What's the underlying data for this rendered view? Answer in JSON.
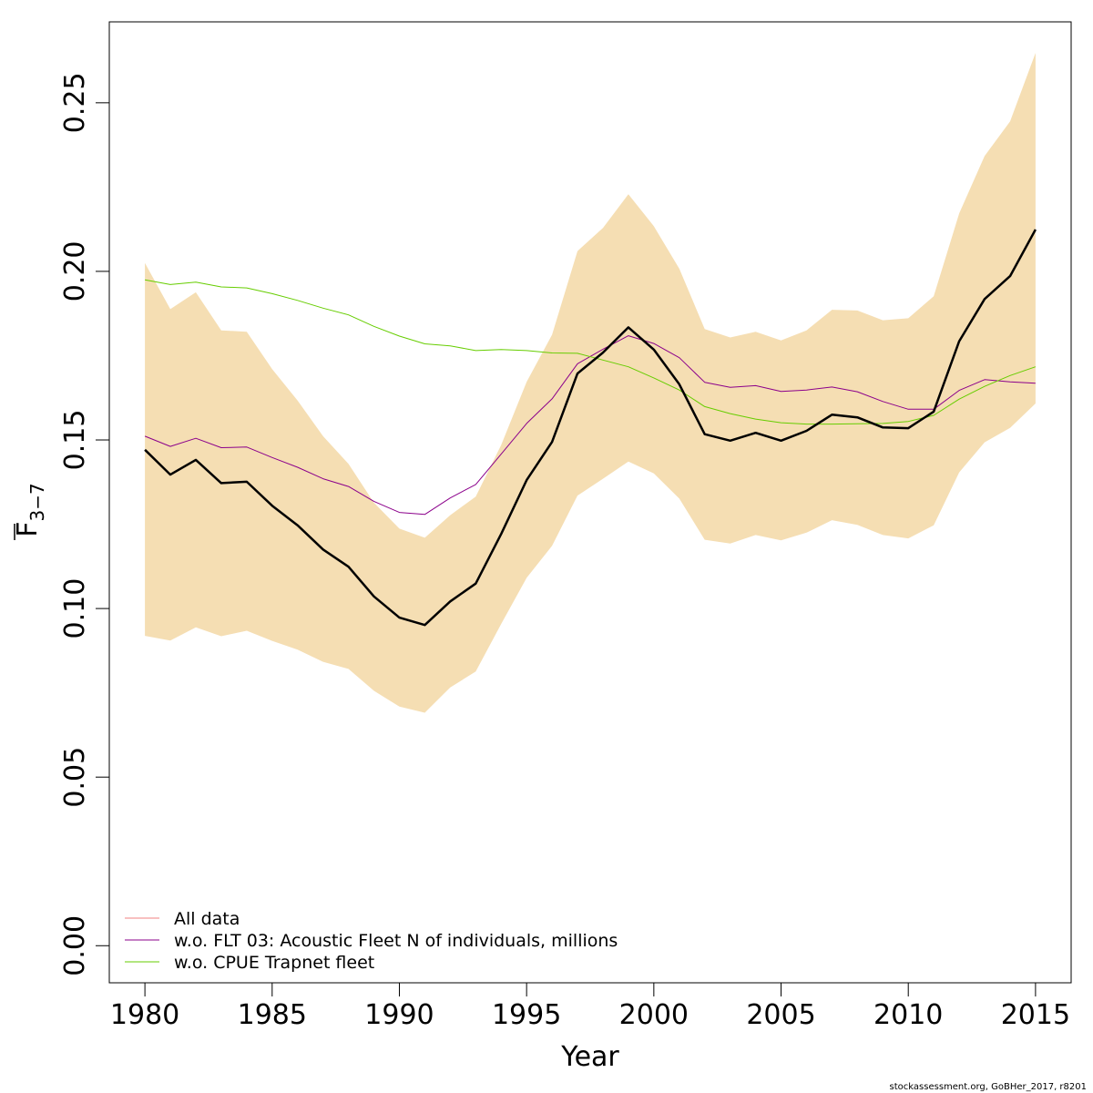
{
  "chart_data": {
    "type": "line",
    "title": "",
    "xlabel": "Year",
    "ylabel": {
      "main": "F",
      "sub": "3−7"
    },
    "xlim": [
      1978.6,
      2016.4
    ],
    "ylim": [
      -0.011,
      0.274
    ],
    "xticks": [
      1980,
      1985,
      1990,
      1995,
      2000,
      2005,
      2010,
      2015
    ],
    "yticks": [
      0.0,
      0.05,
      0.1,
      0.15,
      0.2,
      0.25
    ],
    "ytick_labels": [
      "0.00",
      "0.05",
      "0.10",
      "0.15",
      "0.20",
      "0.25"
    ],
    "grid": false,
    "legend_position": "bottom-left",
    "x": [
      1980,
      1981,
      1982,
      1983,
      1984,
      1985,
      1986,
      1987,
      1988,
      1989,
      1990,
      1991,
      1992,
      1993,
      1994,
      1995,
      1996,
      1997,
      1998,
      1999,
      2000,
      2001,
      2002,
      2003,
      2004,
      2005,
      2006,
      2007,
      2008,
      2009,
      2010,
      2011,
      2012,
      2013,
      2014,
      2015
    ],
    "band": {
      "color": "#f5deb3",
      "upper": [
        0.2025,
        0.1888,
        0.1938,
        0.1825,
        0.1821,
        0.171,
        0.1617,
        0.1511,
        0.1429,
        0.1314,
        0.1237,
        0.121,
        0.1277,
        0.1332,
        0.1485,
        0.1672,
        0.1812,
        0.206,
        0.2129,
        0.2229,
        0.2134,
        0.2008,
        0.1829,
        0.1804,
        0.1821,
        0.1795,
        0.1825,
        0.1886,
        0.1884,
        0.1855,
        0.1861,
        0.1926,
        0.2172,
        0.2342,
        0.2445,
        0.2648
      ],
      "lower": [
        0.0919,
        0.0905,
        0.0944,
        0.0918,
        0.0934,
        0.0904,
        0.0878,
        0.0842,
        0.0821,
        0.0756,
        0.0709,
        0.0691,
        0.0766,
        0.0813,
        0.0954,
        0.1091,
        0.1186,
        0.1335,
        0.1385,
        0.1436,
        0.1401,
        0.1326,
        0.1204,
        0.1193,
        0.1218,
        0.1202,
        0.1225,
        0.1262,
        0.1248,
        0.1218,
        0.1208,
        0.1247,
        0.1404,
        0.1493,
        0.1536,
        0.1608
      ]
    },
    "series": [
      {
        "name": "All data",
        "color": "#000000",
        "width": 2.5,
        "in_legend": false,
        "values": [
          0.1471,
          0.1397,
          0.1441,
          0.1372,
          0.1376,
          0.1305,
          0.1247,
          0.1175,
          0.1124,
          0.1036,
          0.0973,
          0.0951,
          0.1021,
          0.1074,
          0.1221,
          0.1381,
          0.1494,
          0.1697,
          0.1759,
          0.1834,
          0.1768,
          0.1665,
          0.1517,
          0.1498,
          0.1521,
          0.1498,
          0.1527,
          0.1575,
          0.1567,
          0.1537,
          0.1535,
          0.1584,
          0.1793,
          0.1918,
          0.1986,
          0.2124
        ]
      },
      {
        "name": "w.o. FLT 03: Acoustic Fleet   N of individuals, millions",
        "color": "#8b008b",
        "width": 1,
        "in_legend": true,
        "values": [
          0.1511,
          0.1481,
          0.1505,
          0.1477,
          0.1479,
          0.1448,
          0.1419,
          0.1385,
          0.1362,
          0.1318,
          0.1285,
          0.1279,
          0.1328,
          0.1368,
          0.1458,
          0.1549,
          0.1622,
          0.1726,
          0.1769,
          0.1809,
          0.1786,
          0.1744,
          0.1671,
          0.1656,
          0.1661,
          0.1644,
          0.1648,
          0.1657,
          0.1643,
          0.1614,
          0.1591,
          0.1591,
          0.1647,
          0.1679,
          0.1672,
          0.1668
        ]
      },
      {
        "name": "w.o. CPUE Trapnet fleet",
        "color": "#66cd00",
        "width": 1,
        "in_legend": true,
        "values": [
          0.1975,
          0.1961,
          0.1968,
          0.1954,
          0.1951,
          0.1934,
          0.1914,
          0.1891,
          0.1871,
          0.1837,
          0.1808,
          0.1785,
          0.1779,
          0.1765,
          0.1768,
          0.1765,
          0.1758,
          0.1757,
          0.1737,
          0.1717,
          0.1684,
          0.1648,
          0.1599,
          0.1578,
          0.1562,
          0.1551,
          0.1547,
          0.1547,
          0.1548,
          0.1549,
          0.1555,
          0.1573,
          0.1621,
          0.1659,
          0.1691,
          0.1717
        ]
      }
    ],
    "legend": [
      {
        "label": "All data",
        "color": "#f08080"
      },
      {
        "label": "w.o. FLT 03: Acoustic Fleet   N of individuals, millions",
        "color": "#8b008b"
      },
      {
        "label": "w.o. CPUE Trapnet fleet",
        "color": "#66cd00"
      }
    ]
  },
  "footer": "stockassessment.org, GoBHer_2017, r8201"
}
